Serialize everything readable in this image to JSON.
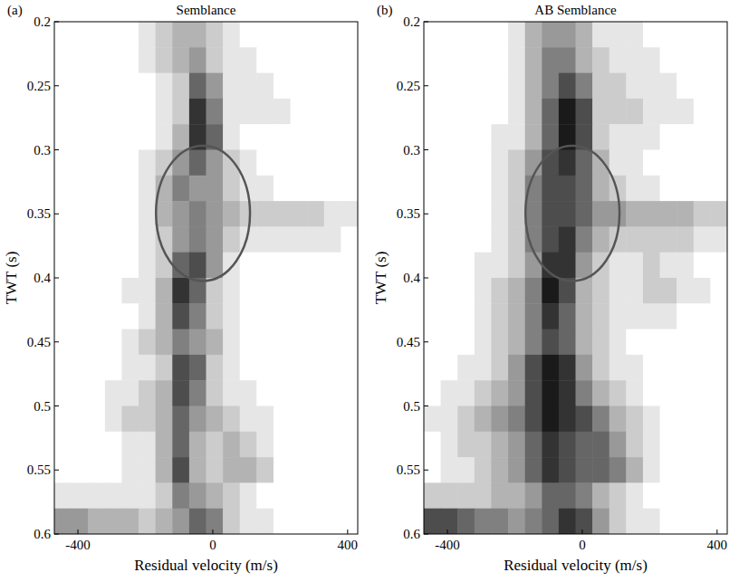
{
  "chart_data": [
    {
      "type": "heatmap",
      "panel_label": "(a)",
      "title": "Semblance",
      "x_label": "Residual velocity (m/s)",
      "y_label": "TWT (s)",
      "xlim": [
        -470,
        430
      ],
      "ylim": [
        0.6,
        0.2
      ],
      "xticks": [
        -400,
        0,
        400
      ],
      "yticks": [
        0.2,
        0.25,
        0.3,
        0.35,
        0.4,
        0.45,
        0.5,
        0.55,
        0.6
      ],
      "x": [
        -445,
        -395,
        -345,
        -295,
        -245,
        -195,
        -145,
        -95,
        -45,
        5,
        55,
        105,
        155,
        205,
        255,
        305,
        355,
        405
      ],
      "y": [
        0.21,
        0.23,
        0.25,
        0.27,
        0.29,
        0.31,
        0.33,
        0.35,
        0.37,
        0.39,
        0.41,
        0.43,
        0.45,
        0.47,
        0.49,
        0.51,
        0.53,
        0.55,
        0.57,
        0.59
      ],
      "color": "#000000",
      "color_range": [
        0,
        1
      ],
      "z": [
        [
          0,
          0,
          0,
          0,
          0,
          0.1,
          0.2,
          0.3,
          0.3,
          0.2,
          0.1,
          0,
          0,
          0,
          0,
          0,
          0,
          0
        ],
        [
          0,
          0,
          0,
          0,
          0,
          0.1,
          0.2,
          0.3,
          0.4,
          0.2,
          0.1,
          0.1,
          0,
          0,
          0,
          0,
          0,
          0
        ],
        [
          0,
          0,
          0,
          0,
          0,
          0,
          0.1,
          0.2,
          0.6,
          0.4,
          0.1,
          0.1,
          0.1,
          0,
          0,
          0,
          0,
          0
        ],
        [
          0,
          0,
          0,
          0,
          0,
          0,
          0.1,
          0.2,
          0.8,
          0.5,
          0.1,
          0.1,
          0.1,
          0.1,
          0,
          0,
          0,
          0
        ],
        [
          0,
          0,
          0,
          0,
          0,
          0,
          0.1,
          0.3,
          0.8,
          0.6,
          0.1,
          0,
          0,
          0,
          0,
          0,
          0,
          0
        ],
        [
          0,
          0,
          0,
          0,
          0,
          0.1,
          0.2,
          0.4,
          0.6,
          0.4,
          0.2,
          0.1,
          0,
          0,
          0,
          0,
          0,
          0
        ],
        [
          0,
          0,
          0,
          0,
          0,
          0.1,
          0.3,
          0.5,
          0.4,
          0.4,
          0.2,
          0.1,
          0.1,
          0,
          0,
          0,
          0,
          0
        ],
        [
          0,
          0,
          0,
          0,
          0,
          0.1,
          0.3,
          0.4,
          0.5,
          0.4,
          0.3,
          0.2,
          0.2,
          0.2,
          0.2,
          0.2,
          0.1,
          0.1
        ],
        [
          0,
          0,
          0,
          0,
          0,
          0.1,
          0.2,
          0.4,
          0.5,
          0.4,
          0.2,
          0.1,
          0.1,
          0.1,
          0.1,
          0.1,
          0.1,
          0
        ],
        [
          0,
          0,
          0,
          0,
          0,
          0.1,
          0.2,
          0.6,
          0.7,
          0.4,
          0.1,
          0,
          0,
          0,
          0,
          0,
          0,
          0
        ],
        [
          0,
          0,
          0,
          0,
          0.1,
          0.1,
          0.3,
          0.8,
          0.6,
          0.2,
          0.1,
          0,
          0,
          0,
          0,
          0,
          0,
          0
        ],
        [
          0,
          0,
          0,
          0,
          0,
          0.1,
          0.3,
          0.7,
          0.5,
          0.2,
          0.1,
          0,
          0,
          0,
          0,
          0,
          0,
          0
        ],
        [
          0,
          0,
          0,
          0,
          0.1,
          0.2,
          0.3,
          0.5,
          0.4,
          0.3,
          0.1,
          0,
          0,
          0,
          0,
          0,
          0,
          0
        ],
        [
          0,
          0,
          0,
          0,
          0.1,
          0.1,
          0.2,
          0.7,
          0.6,
          0.2,
          0.1,
          0,
          0,
          0,
          0,
          0,
          0,
          0
        ],
        [
          0,
          0,
          0,
          0.1,
          0.1,
          0.2,
          0.3,
          0.7,
          0.5,
          0.2,
          0.1,
          0.1,
          0,
          0,
          0,
          0,
          0,
          0
        ],
        [
          0,
          0,
          0,
          0.1,
          0.2,
          0.2,
          0.3,
          0.6,
          0.4,
          0.3,
          0.2,
          0.1,
          0.1,
          0,
          0,
          0,
          0,
          0
        ],
        [
          0,
          0,
          0,
          0,
          0.1,
          0.1,
          0.3,
          0.6,
          0.3,
          0.2,
          0.3,
          0.2,
          0.1,
          0,
          0,
          0,
          0,
          0
        ],
        [
          0,
          0,
          0,
          0,
          0.1,
          0.1,
          0.3,
          0.7,
          0.3,
          0.2,
          0.3,
          0.3,
          0.2,
          0,
          0,
          0,
          0,
          0
        ],
        [
          0.1,
          0.1,
          0.1,
          0.1,
          0.1,
          0.1,
          0.2,
          0.5,
          0.4,
          0.3,
          0.2,
          0.1,
          0,
          0,
          0,
          0,
          0,
          0
        ],
        [
          0.4,
          0.4,
          0.3,
          0.3,
          0.3,
          0.2,
          0.3,
          0.4,
          0.6,
          0.5,
          0.2,
          0.1,
          0.1,
          0,
          0,
          0,
          0,
          0
        ]
      ]
    },
    {
      "type": "heatmap",
      "panel_label": "(b)",
      "title": "AB Semblance",
      "x_label": "Residual velocity (m/s)",
      "y_label": "TWT (s)",
      "xlim": [
        -470,
        430
      ],
      "ylim": [
        0.6,
        0.2
      ],
      "xticks": [
        -400,
        0,
        400
      ],
      "yticks": [
        0.2,
        0.25,
        0.3,
        0.35,
        0.4,
        0.45,
        0.5,
        0.55,
        0.6
      ],
      "x": [
        -445,
        -395,
        -345,
        -295,
        -245,
        -195,
        -145,
        -95,
        -45,
        5,
        55,
        105,
        155,
        205,
        255,
        305,
        355,
        405
      ],
      "y": [
        0.21,
        0.23,
        0.25,
        0.27,
        0.29,
        0.31,
        0.33,
        0.35,
        0.37,
        0.39,
        0.41,
        0.43,
        0.45,
        0.47,
        0.49,
        0.51,
        0.53,
        0.55,
        0.57,
        0.59
      ],
      "color": "#000000",
      "color_range": [
        0,
        1
      ],
      "z": [
        [
          0,
          0,
          0,
          0,
          0,
          0.1,
          0.3,
          0.4,
          0.4,
          0.3,
          0.1,
          0.1,
          0.1,
          0,
          0,
          0,
          0,
          0
        ],
        [
          0,
          0,
          0,
          0,
          0,
          0.1,
          0.3,
          0.5,
          0.5,
          0.3,
          0.2,
          0.1,
          0.1,
          0.1,
          0,
          0,
          0,
          0
        ],
        [
          0,
          0,
          0,
          0,
          0,
          0.1,
          0.3,
          0.5,
          0.7,
          0.5,
          0.2,
          0.2,
          0.1,
          0.1,
          0.1,
          0,
          0,
          0
        ],
        [
          0,
          0,
          0,
          0,
          0,
          0.1,
          0.3,
          0.6,
          0.9,
          0.7,
          0.2,
          0.2,
          0.2,
          0.1,
          0.1,
          0.1,
          0,
          0
        ],
        [
          0,
          0,
          0,
          0,
          0.1,
          0.1,
          0.3,
          0.6,
          0.9,
          0.7,
          0.2,
          0.1,
          0.1,
          0.1,
          0,
          0,
          0,
          0
        ],
        [
          0,
          0,
          0,
          0,
          0.1,
          0.2,
          0.4,
          0.7,
          0.8,
          0.6,
          0.3,
          0.1,
          0.1,
          0,
          0,
          0,
          0,
          0
        ],
        [
          0,
          0,
          0,
          0,
          0.1,
          0.2,
          0.5,
          0.7,
          0.7,
          0.6,
          0.3,
          0.2,
          0.1,
          0.1,
          0,
          0,
          0,
          0
        ],
        [
          0,
          0,
          0,
          0,
          0.1,
          0.2,
          0.5,
          0.7,
          0.7,
          0.6,
          0.4,
          0.4,
          0.3,
          0.3,
          0.3,
          0.3,
          0.2,
          0.2
        ],
        [
          0,
          0,
          0,
          0,
          0.1,
          0.2,
          0.5,
          0.7,
          0.8,
          0.5,
          0.3,
          0.2,
          0.2,
          0.2,
          0.2,
          0.2,
          0.1,
          0.1
        ],
        [
          0,
          0,
          0,
          0.1,
          0.1,
          0.2,
          0.4,
          0.8,
          0.8,
          0.4,
          0.2,
          0.1,
          0.1,
          0.2,
          0.1,
          0.1,
          0,
          0
        ],
        [
          0,
          0,
          0,
          0.1,
          0.2,
          0.3,
          0.5,
          0.9,
          0.7,
          0.3,
          0.2,
          0.1,
          0.1,
          0.2,
          0.2,
          0.1,
          0.1,
          0
        ],
        [
          0,
          0,
          0,
          0.1,
          0.2,
          0.3,
          0.5,
          0.8,
          0.6,
          0.3,
          0.2,
          0.1,
          0.1,
          0.1,
          0.1,
          0,
          0,
          0
        ],
        [
          0,
          0,
          0,
          0.1,
          0.2,
          0.3,
          0.5,
          0.7,
          0.6,
          0.3,
          0.2,
          0.1,
          0,
          0,
          0,
          0,
          0,
          0
        ],
        [
          0,
          0,
          0.1,
          0.1,
          0.2,
          0.4,
          0.7,
          0.9,
          0.8,
          0.4,
          0.2,
          0.1,
          0.1,
          0,
          0,
          0,
          0,
          0
        ],
        [
          0,
          0.1,
          0.1,
          0.2,
          0.3,
          0.4,
          0.7,
          0.9,
          0.8,
          0.5,
          0.3,
          0.2,
          0.1,
          0,
          0,
          0,
          0,
          0
        ],
        [
          0.1,
          0.1,
          0.2,
          0.3,
          0.4,
          0.5,
          0.7,
          0.9,
          0.8,
          0.7,
          0.5,
          0.3,
          0.2,
          0.1,
          0,
          0,
          0,
          0
        ],
        [
          0,
          0.1,
          0.2,
          0.2,
          0.3,
          0.4,
          0.6,
          0.8,
          0.7,
          0.6,
          0.6,
          0.4,
          0.2,
          0.1,
          0,
          0,
          0,
          0
        ],
        [
          0,
          0.1,
          0.1,
          0.2,
          0.3,
          0.4,
          0.6,
          0.8,
          0.7,
          0.6,
          0.6,
          0.5,
          0.3,
          0.1,
          0,
          0,
          0,
          0
        ],
        [
          0.2,
          0.2,
          0.2,
          0.2,
          0.3,
          0.3,
          0.4,
          0.6,
          0.6,
          0.5,
          0.3,
          0.2,
          0.1,
          0,
          0,
          0,
          0,
          0
        ],
        [
          0.7,
          0.7,
          0.6,
          0.5,
          0.5,
          0.4,
          0.5,
          0.6,
          0.8,
          0.7,
          0.4,
          0.2,
          0.1,
          0.1,
          0,
          0,
          0,
          0
        ]
      ]
    }
  ]
}
